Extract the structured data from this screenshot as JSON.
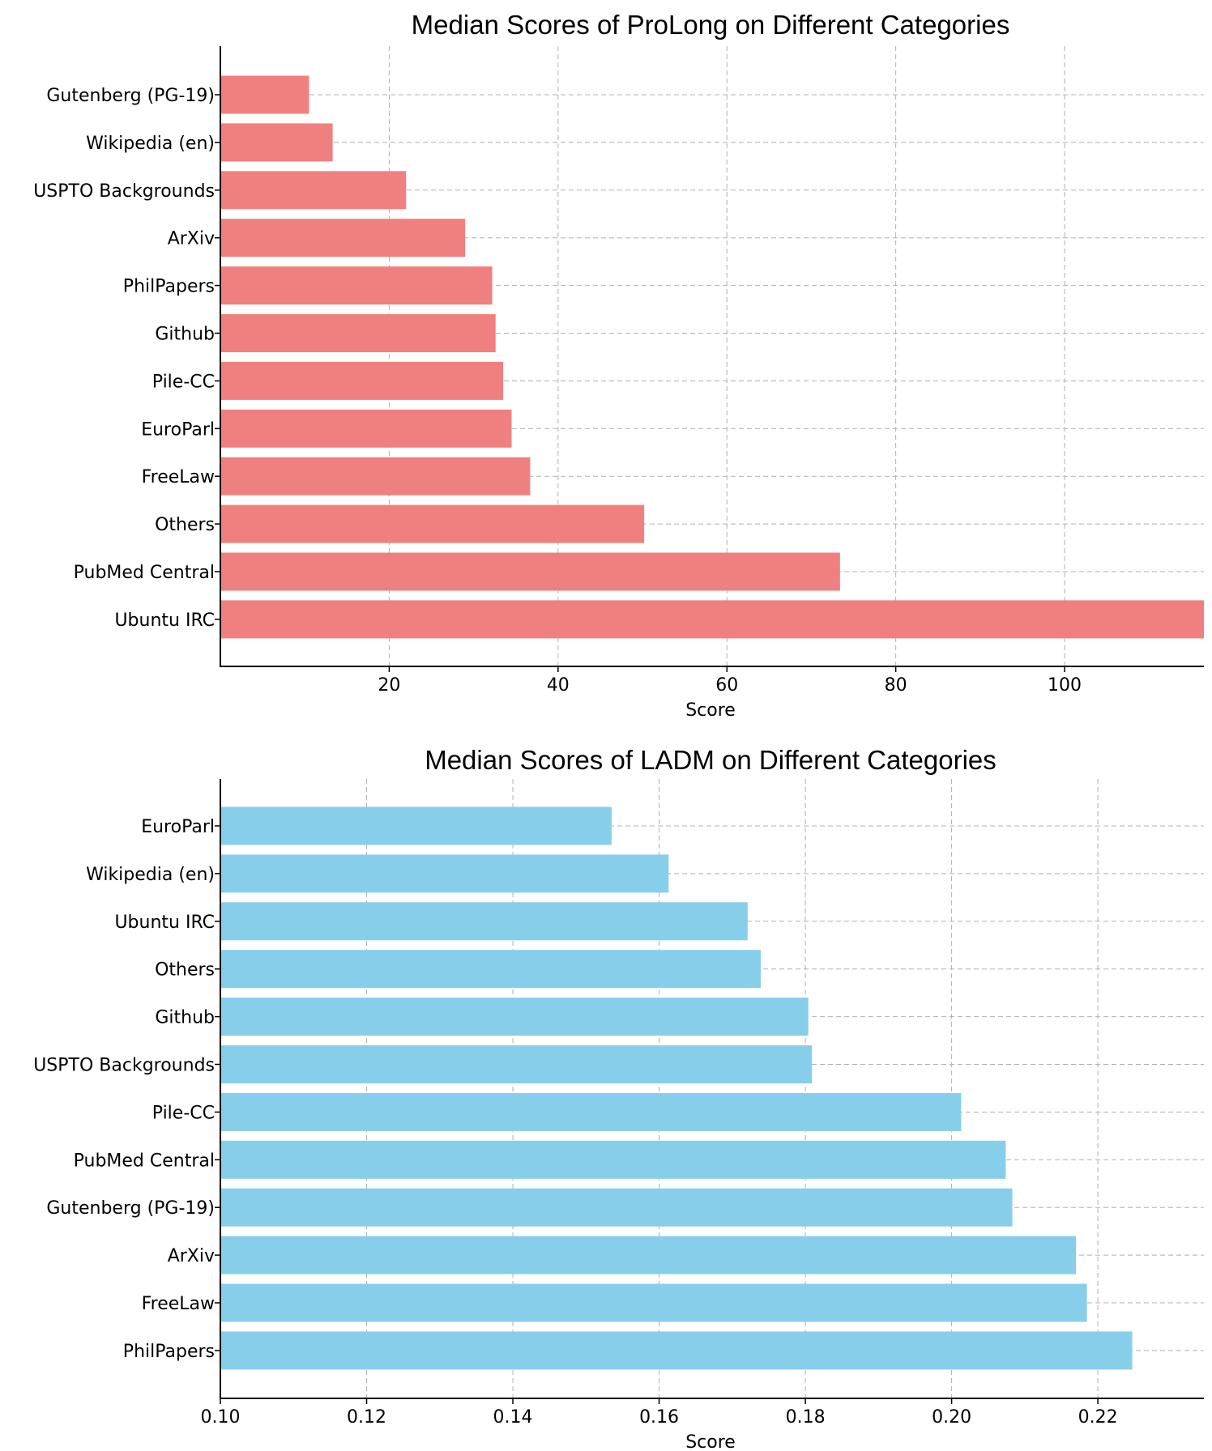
{
  "chart_data": [
    {
      "type": "bar",
      "orientation": "horizontal",
      "title": "Median Scores of ProLong on Different Categories",
      "xlabel": "Score",
      "ylabel": "",
      "xlim": [
        0,
        116.5
      ],
      "xticks": [
        20,
        40,
        60,
        80,
        100
      ],
      "xtick_labels": [
        "20",
        "40",
        "60",
        "80",
        "100"
      ],
      "grid": true,
      "color": "#f08080",
      "categories": [
        "Gutenberg (PG-19)",
        "Wikipedia (en)",
        "USPTO Backgrounds",
        "ArXiv",
        "PhilPapers",
        "Github",
        "Pile-CC",
        "EuroParl",
        "FreeLaw",
        "Others",
        "PubMed Central",
        "Ubuntu IRC"
      ],
      "values": [
        10.5,
        13.3,
        22.0,
        29.0,
        32.2,
        32.6,
        33.5,
        34.5,
        36.7,
        50.2,
        73.4,
        116.5
      ]
    },
    {
      "type": "bar",
      "orientation": "horizontal",
      "title": "Median Scores of LADM on Different Categories",
      "xlabel": "Score",
      "ylabel": "",
      "xlim": [
        0.1,
        0.2345
      ],
      "xticks": [
        0.1,
        0.12,
        0.14,
        0.16,
        0.18,
        0.2,
        0.22
      ],
      "xtick_labels": [
        "0.10",
        "0.12",
        "0.14",
        "0.16",
        "0.18",
        "0.20",
        "0.22"
      ],
      "grid": true,
      "color": "#87ceeb",
      "categories": [
        "EuroParl",
        "Wikipedia (en)",
        "Ubuntu IRC",
        "Others",
        "Github",
        "USPTO Backgrounds",
        "Pile-CC",
        "PubMed Central",
        "Gutenberg (PG-19)",
        "ArXiv",
        "FreeLaw",
        "PhilPapers"
      ],
      "values": [
        0.1535,
        0.1613,
        0.1721,
        0.1739,
        0.1804,
        0.1809,
        0.2013,
        0.2074,
        0.2083,
        0.217,
        0.2185,
        0.2247
      ]
    }
  ]
}
